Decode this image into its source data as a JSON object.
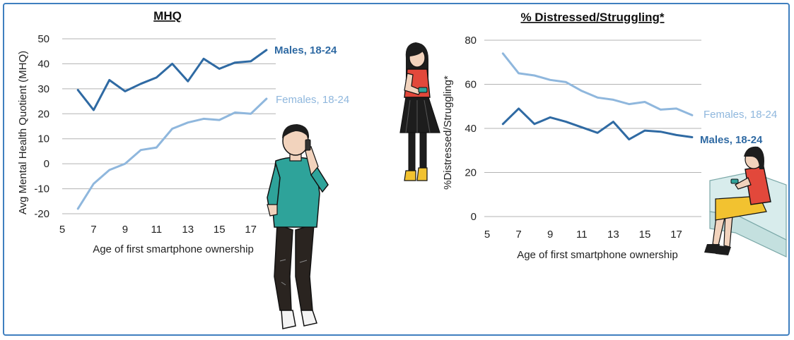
{
  "colors": {
    "males": "#2f6aa3",
    "females": "#8fb7dd",
    "grid": "#b3b3b3",
    "frame": "#3f7fbf",
    "shirt_man": "#2ea39a",
    "shirt_girl": "#e2483b",
    "skirt_woman": "#f2c230"
  },
  "illustrations": [
    "man-on-phone",
    "girl-with-phone",
    "woman-on-bench"
  ],
  "chart_data": [
    {
      "type": "line",
      "title": "MHQ",
      "xlabel": "Age of first smartphone ownership",
      "ylabel": "Avg Mental Health Quotient (MHQ)",
      "xlim": [
        5,
        18.5
      ],
      "ylim": [
        -20,
        50
      ],
      "xticks": [
        5,
        7,
        9,
        11,
        13,
        15,
        17
      ],
      "yticks": [
        -20,
        -10,
        0,
        10,
        20,
        30,
        40,
        50
      ],
      "grid": "horizontal",
      "series": [
        {
          "name": "Males, 18-24",
          "x": [
            6,
            7,
            8,
            9,
            10,
            11,
            12,
            13,
            14,
            15,
            16,
            17,
            18
          ],
          "y": [
            29.5,
            21.5,
            33.5,
            29,
            32,
            34.5,
            40,
            33,
            42,
            38,
            40.5,
            41,
            45.5
          ]
        },
        {
          "name": "Females, 18-24",
          "x": [
            6,
            7,
            8,
            9,
            10,
            11,
            12,
            13,
            14,
            15,
            16,
            17,
            18
          ],
          "y": [
            -18,
            -8,
            -2.5,
            0,
            5.5,
            6.5,
            14,
            16.5,
            18,
            17.5,
            20.5,
            20,
            26
          ]
        }
      ]
    },
    {
      "type": "line",
      "title": "% Distressed/Struggling*",
      "xlabel": "Age of first smartphone ownership",
      "ylabel": "%Distressed/Struggling*",
      "xlim": [
        5,
        18.5
      ],
      "ylim": [
        0,
        80
      ],
      "xticks": [
        5,
        7,
        9,
        11,
        13,
        15,
        17
      ],
      "yticks": [
        0,
        20,
        40,
        60,
        80
      ],
      "grid": "horizontal",
      "series": [
        {
          "name": "Females, 18-24",
          "x": [
            6,
            7,
            8,
            9,
            10,
            11,
            12,
            13,
            14,
            15,
            16,
            17,
            18
          ],
          "y": [
            74,
            65,
            64,
            62,
            61,
            57,
            54,
            53,
            51,
            52,
            48.5,
            49,
            46
          ]
        },
        {
          "name": "Males, 18-24",
          "x": [
            6,
            7,
            8,
            9,
            10,
            11,
            12,
            13,
            14,
            15,
            16,
            17,
            18
          ],
          "y": [
            42,
            49,
            42,
            45,
            43,
            40.5,
            38,
            43,
            35,
            39,
            38.5,
            37,
            36
          ]
        }
      ]
    }
  ]
}
